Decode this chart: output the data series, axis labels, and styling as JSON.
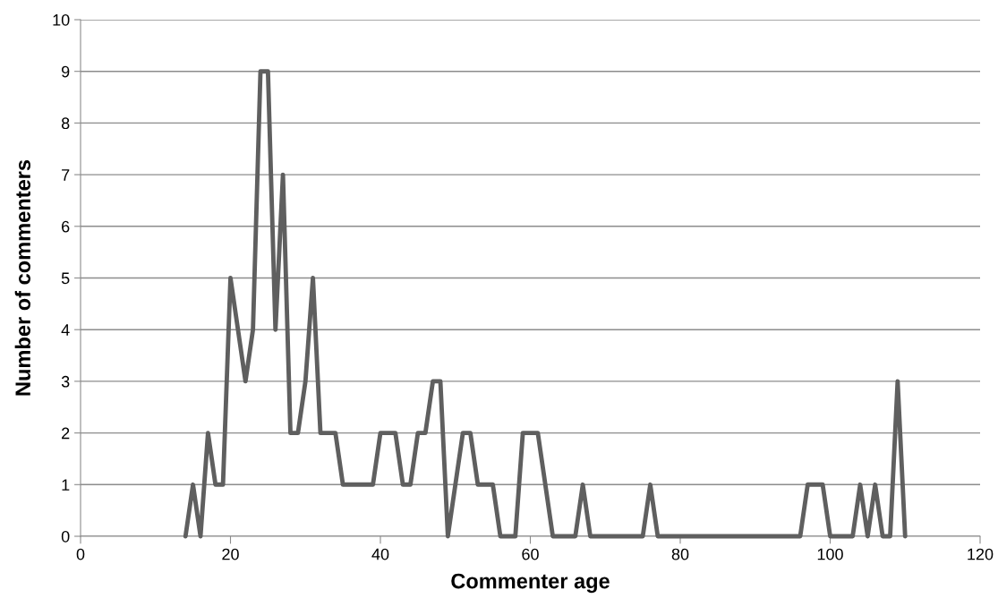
{
  "chart_data": {
    "type": "line",
    "xlabel": "Commenter age",
    "ylabel": "Number of commenters",
    "xlim": [
      0,
      120
    ],
    "xticks": [
      0,
      20,
      40,
      60,
      80,
      100,
      120
    ],
    "ylim": [
      0,
      10
    ],
    "yticks": [
      0,
      1,
      2,
      3,
      4,
      5,
      6,
      7,
      8,
      9,
      10
    ],
    "grid": "y",
    "series": [
      {
        "color": "#5f5f5f",
        "x": [
          14,
          15,
          16,
          17,
          18,
          19,
          20,
          22,
          23,
          24,
          25,
          26,
          27,
          28,
          29,
          30,
          31,
          32,
          33,
          34,
          35,
          36,
          37,
          38,
          39,
          40,
          41,
          42,
          43,
          44,
          45,
          46,
          47,
          48,
          49,
          51,
          52,
          53,
          54,
          55,
          56,
          57,
          58,
          59,
          60,
          61,
          63,
          64,
          65,
          66,
          67,
          68,
          75,
          76,
          77,
          96,
          97,
          98,
          99,
          100,
          103,
          104,
          105,
          106,
          107,
          108,
          109,
          110
        ],
        "values": [
          0,
          1,
          0,
          2,
          1,
          1,
          5,
          3,
          4,
          9,
          9,
          4,
          7,
          2,
          2,
          3,
          5,
          2,
          2,
          2,
          1,
          1,
          1,
          1,
          1,
          2,
          2,
          2,
          1,
          1,
          2,
          2,
          3,
          3,
          0,
          2,
          2,
          1,
          1,
          1,
          0,
          0,
          0,
          2,
          2,
          2,
          0,
          0,
          0,
          0,
          1,
          0,
          0,
          1,
          0,
          0,
          1,
          1,
          1,
          0,
          0,
          1,
          0,
          1,
          0,
          0,
          3,
          0
        ]
      }
    ]
  }
}
